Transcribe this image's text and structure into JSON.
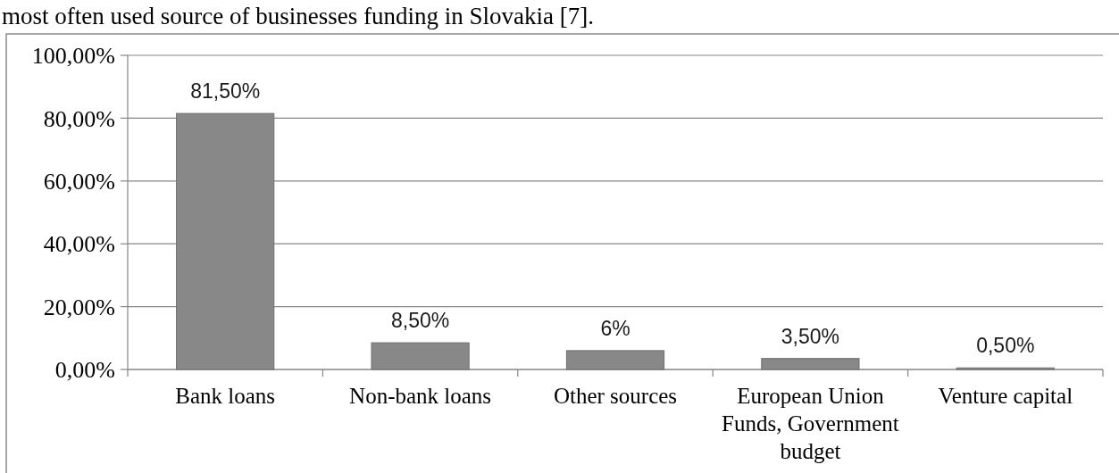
{
  "chart_data": {
    "type": "bar",
    "title": "most often used source of businesses funding in Slovakia [7].",
    "categories": [
      "Bank loans",
      "Non-bank loans",
      "Other sources",
      "European Union Funds, Government budget",
      "Venture capital"
    ],
    "values": [
      81.5,
      8.5,
      6,
      3.5,
      0.5
    ],
    "value_labels": [
      "81,50%",
      "8,50%",
      "6%",
      "3,50%",
      "0,50%"
    ],
    "color": "#888888",
    "ylim": [
      0,
      100
    ],
    "yticks": [
      {
        "value": 0,
        "label": "0,00%"
      },
      {
        "value": 20,
        "label": "20,00%"
      },
      {
        "value": 40,
        "label": "40,00%"
      },
      {
        "value": 60,
        "label": "60,00%"
      },
      {
        "value": 80,
        "label": "80,00%"
      },
      {
        "value": 100,
        "label": "100,00%"
      }
    ],
    "grid": "y"
  }
}
